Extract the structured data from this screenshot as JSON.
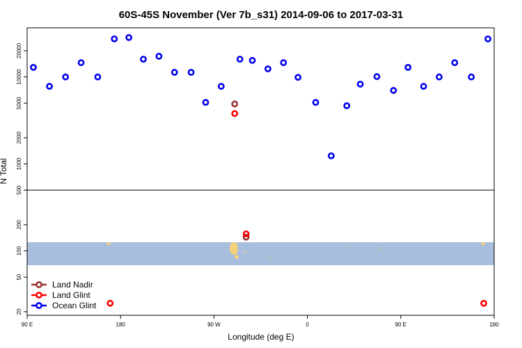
{
  "chart_data": {
    "type": "scatter",
    "title": "60S-45S November (Ver 7b_s31)   2014-09-06 to 2017-03-31",
    "x_label": "Longitude (deg E)",
    "y_label": "N Total",
    "log_y": true,
    "xlim": [
      90,
      540
    ],
    "ylim": [
      18.2,
      36700
    ],
    "xticks": [
      {
        "value": 90,
        "label": "90 E"
      },
      {
        "value": 180,
        "label": "180"
      },
      {
        "value": 270,
        "label": "90 W"
      },
      {
        "value": 360,
        "label": "0"
      },
      {
        "value": 450,
        "label": "90 E"
      },
      {
        "value": 540,
        "label": "180"
      }
    ],
    "yticks": [
      20,
      50,
      100,
      200,
      500,
      1000,
      2000,
      5000,
      10000,
      20000
    ],
    "hline": 500,
    "legend": "lower left",
    "series": [
      {
        "name": "Land Nadir",
        "color": "#993333",
        "x": [
          290,
          301
        ],
        "values": [
          4900,
          144
        ]
      },
      {
        "name": "Land Glint",
        "color": "#ff0000",
        "x": [
          290,
          301,
          170,
          530
        ],
        "values": [
          3800,
          157,
          25,
          25
        ]
      },
      {
        "name": "Ocean Glint",
        "color": "#0000ee",
        "x": [
          96,
          111.5,
          127,
          142,
          158,
          174,
          188,
          202,
          217,
          232,
          248,
          262,
          277,
          295,
          307,
          322,
          337,
          351,
          368,
          383,
          398,
          411,
          427,
          443,
          457,
          472,
          487,
          502,
          518,
          534
        ],
        "values": [
          12900,
          7800,
          10000,
          14600,
          10000,
          27400,
          28400,
          16000,
          17300,
          11300,
          11300,
          5100,
          7800,
          16000,
          15500,
          12400,
          14600,
          9900,
          5100,
          1240,
          4670,
          8260,
          10100,
          7000,
          12900,
          7800,
          10000,
          14600,
          10000,
          27400
        ]
      }
    ]
  }
}
